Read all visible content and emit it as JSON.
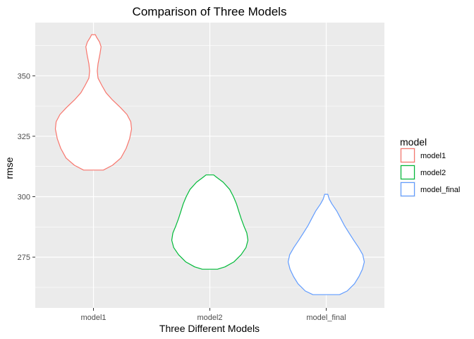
{
  "chart_data": {
    "type": "violin",
    "title": "Comparison of Three Models",
    "xlabel": "Three Different Models",
    "ylabel": "rmse",
    "ylim": [
      254,
      372
    ],
    "y_ticks": [
      275,
      300,
      325,
      350
    ],
    "y_minor_ticks": [
      262.5,
      287.5,
      312.5,
      337.5,
      362.5
    ],
    "grid": true,
    "legend": {
      "title": "model",
      "placement": "right"
    },
    "categories": [
      "model1",
      "model2",
      "model_final"
    ],
    "series": [
      {
        "name": "model1",
        "color": "#F8766D",
        "min": 311,
        "max": 367,
        "profile": [
          [
            311,
            0.26
          ],
          [
            313,
            0.5
          ],
          [
            316,
            0.72
          ],
          [
            320,
            0.86
          ],
          [
            324,
            0.95
          ],
          [
            328,
            1.0
          ],
          [
            331,
            0.98
          ],
          [
            334,
            0.88
          ],
          [
            337,
            0.7
          ],
          [
            340,
            0.5
          ],
          [
            343,
            0.33
          ],
          [
            346,
            0.22
          ],
          [
            349,
            0.12
          ],
          [
            352,
            0.1
          ],
          [
            355,
            0.12
          ],
          [
            359,
            0.17
          ],
          [
            362,
            0.2
          ],
          [
            364,
            0.16
          ],
          [
            366,
            0.08
          ],
          [
            367,
            0.05
          ]
        ]
      },
      {
        "name": "model2",
        "color": "#00BA38",
        "min": 270,
        "max": 309,
        "profile": [
          [
            270,
            0.2
          ],
          [
            271,
            0.4
          ],
          [
            273,
            0.63
          ],
          [
            276,
            0.82
          ],
          [
            279,
            0.95
          ],
          [
            282,
            1.0
          ],
          [
            285,
            0.97
          ],
          [
            288,
            0.89
          ],
          [
            291,
            0.82
          ],
          [
            294,
            0.76
          ],
          [
            297,
            0.7
          ],
          [
            300,
            0.62
          ],
          [
            303,
            0.52
          ],
          [
            306,
            0.35
          ],
          [
            308,
            0.18
          ],
          [
            309,
            0.1
          ]
        ]
      },
      {
        "name": "model_final",
        "color": "#619CFF",
        "min": 259.5,
        "max": 301,
        "profile": [
          [
            259.5,
            0.35
          ],
          [
            261,
            0.55
          ],
          [
            264,
            0.74
          ],
          [
            267,
            0.86
          ],
          [
            270,
            0.95
          ],
          [
            273,
            1.0
          ],
          [
            276,
            0.96
          ],
          [
            279,
            0.85
          ],
          [
            282,
            0.72
          ],
          [
            285,
            0.6
          ],
          [
            288,
            0.48
          ],
          [
            291,
            0.38
          ],
          [
            294,
            0.28
          ],
          [
            297,
            0.15
          ],
          [
            299,
            0.08
          ],
          [
            301,
            0.04
          ]
        ]
      }
    ]
  },
  "colors": {
    "panel_background": "#EBEBEB",
    "grid_major": "#FFFFFF",
    "violin_fill": "#FFFFFF",
    "tick_color": "#333333"
  }
}
